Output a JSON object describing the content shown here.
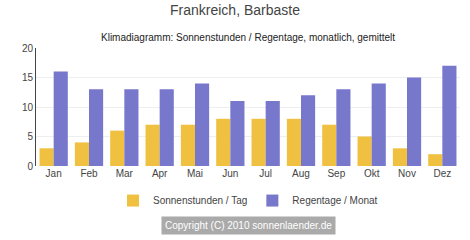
{
  "chart_data": {
    "type": "bar",
    "title": "Frankreich, Barbaste",
    "subtitle": "Klimadiagramm: Sonnenstunden / Regentage, monatlich, gemittelt",
    "categories": [
      "Jan",
      "Feb",
      "Mar",
      "Apr",
      "Mai",
      "Jun",
      "Jul",
      "Aug",
      "Sep",
      "Okt",
      "Nov",
      "Dez"
    ],
    "series": [
      {
        "name": "Sonnenstunden / Tag",
        "color": "#f0c040",
        "values": [
          3,
          4,
          6,
          7,
          7,
          8,
          8,
          8,
          7,
          5,
          3,
          2
        ]
      },
      {
        "name": "Regentage / Monat",
        "color": "#7777cc",
        "values": [
          16,
          13,
          13,
          13,
          14,
          11,
          11,
          12,
          13,
          14,
          15,
          17
        ]
      }
    ],
    "ylim": [
      0,
      20
    ],
    "yticks": [
      0,
      5,
      10,
      15,
      20
    ],
    "grid": true,
    "legend": "bottom",
    "annotations": [
      "Copyright (C) 2010 sonnenlaender.de"
    ]
  }
}
